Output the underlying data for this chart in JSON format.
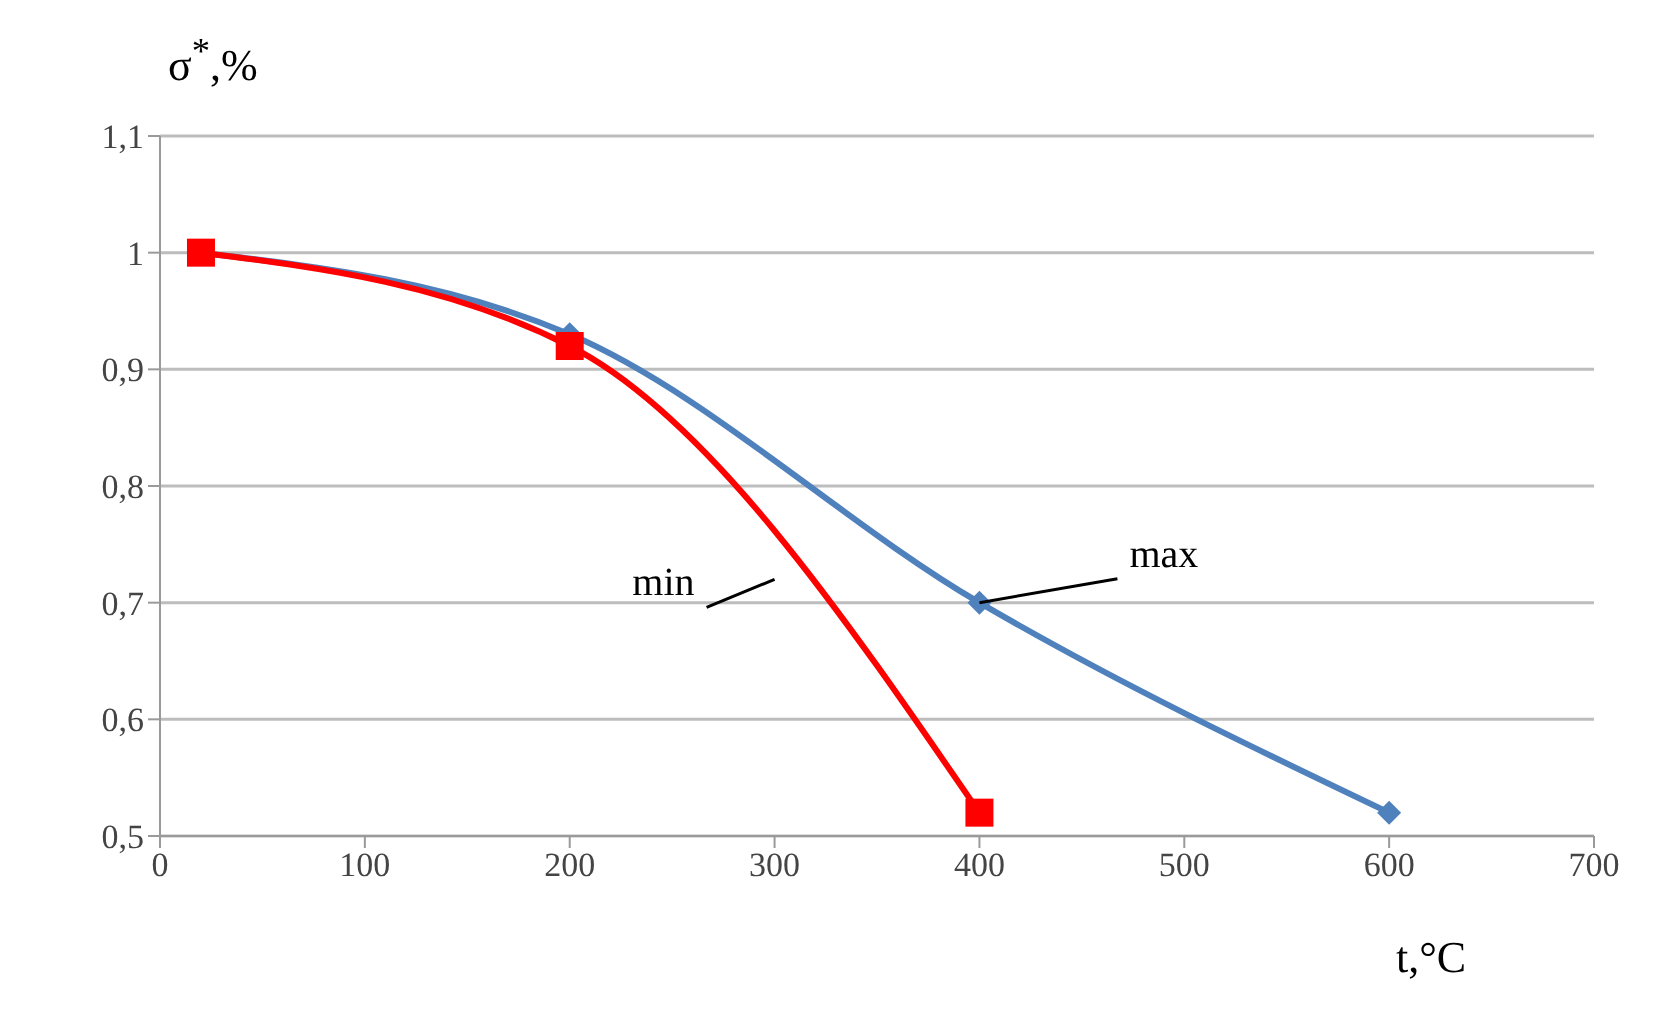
{
  "chart_data": {
    "type": "line",
    "xlabel": "t,°C",
    "ylabel": "σ$^{*}$,%",
    "xlim": [
      0,
      700
    ],
    "xticks": [
      0,
      100,
      200,
      300,
      400,
      500,
      600,
      700
    ],
    "ylim": [
      0.5,
      1.1
    ],
    "yticks": [
      {
        "value": 0.5,
        "label": "0,5"
      },
      {
        "value": 0.6,
        "label": "0,6"
      },
      {
        "value": 0.7,
        "label": "0,7"
      },
      {
        "value": 0.8,
        "label": "0,8"
      },
      {
        "value": 0.9,
        "label": "0,9"
      },
      {
        "value": 1,
        "label": "1"
      },
      {
        "value": 1.1,
        "label": "1,1"
      }
    ],
    "grid": "y",
    "series": [
      {
        "name": "max",
        "color": "#4f81bd",
        "marker": "diamond",
        "x": [
          20,
          200,
          400,
          600
        ],
        "values": [
          1,
          0.93,
          0.7,
          0.52
        ]
      },
      {
        "name": "min",
        "color": "#ff0000",
        "marker": "square",
        "x": [
          20,
          200,
          400
        ],
        "values": [
          1,
          0.92,
          0.52
        ]
      }
    ]
  }
}
